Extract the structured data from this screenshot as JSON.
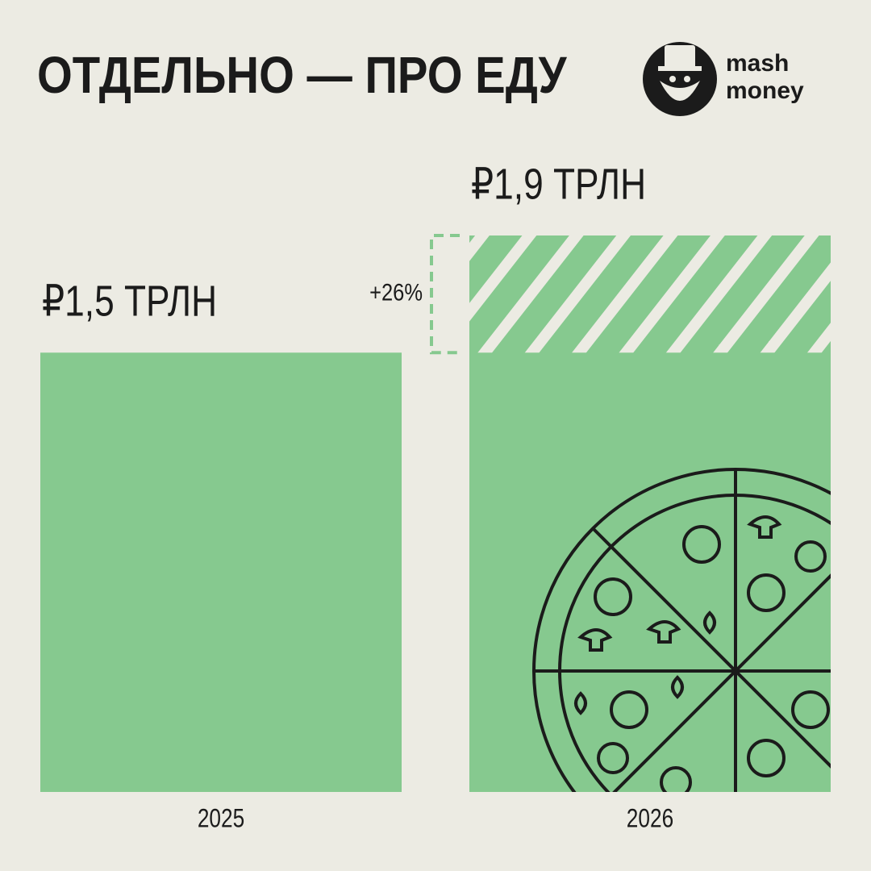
{
  "chart_data": {
    "type": "bar",
    "title": "ОТДЕЛЬНО — ПРО ЕДУ",
    "logo": [
      "mash",
      "money"
    ],
    "categories": [
      "2025",
      "2026"
    ],
    "values": [
      1.5,
      1.9
    ],
    "value_labels": [
      "₽1,5 ТРЛН",
      "₽1,9 ТРЛН"
    ],
    "annotation": "+26%",
    "color": "#86c98f"
  }
}
